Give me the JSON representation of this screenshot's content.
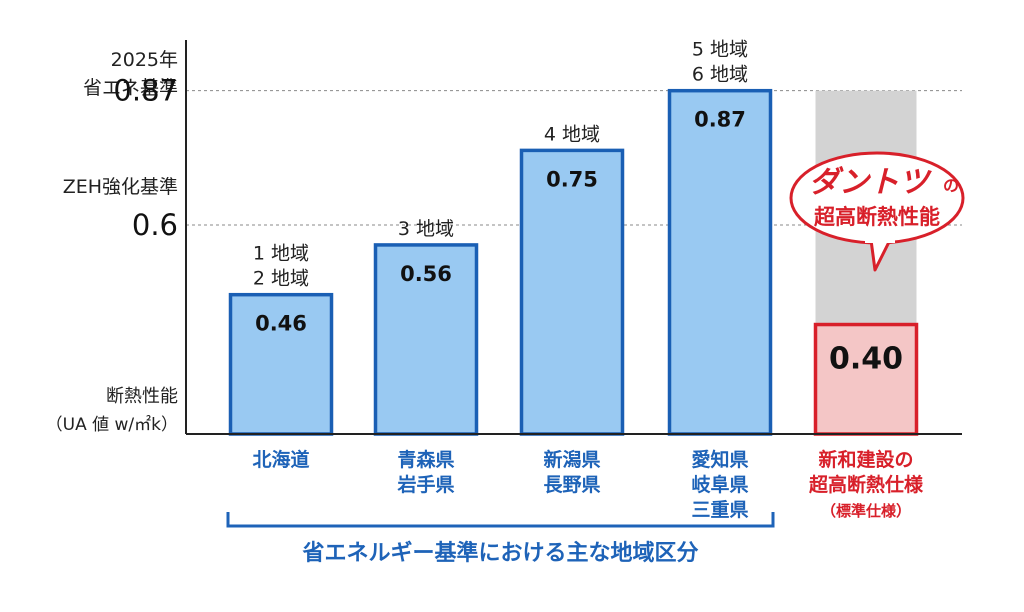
{
  "chart_data": {
    "type": "bar",
    "categories": [
      [
        "北海道"
      ],
      [
        "青森県",
        "岩手県"
      ],
      [
        "新潟県",
        "長野県"
      ],
      [
        "愛知県",
        "岐阜県",
        "三重県"
      ],
      [
        "新和建設の",
        "超高断熱仕様",
        "（標準仕様）"
      ]
    ],
    "regions": [
      [
        "1 地域",
        "2 地域"
      ],
      [
        "3 地域"
      ],
      [
        "4 地域"
      ],
      [
        "5 地域",
        "6 地域"
      ],
      []
    ],
    "values": [
      0.46,
      0.56,
      0.75,
      0.87,
      0.4
    ],
    "value_labels": [
      "0.46",
      "0.56",
      "0.75",
      "0.87",
      "0.40"
    ],
    "ylim": [
      0.18,
      1.0
    ],
    "ylabel": [
      "断熱性能",
      "（UA 値 w/㎡k）"
    ],
    "reference_lines": [
      {
        "caption": [
          "2025年",
          "省エネ基準"
        ],
        "value": 0.87,
        "label": "0.87"
      },
      {
        "caption": [
          "ZEH強化基準"
        ],
        "value": 0.6,
        "label": "0.6"
      }
    ],
    "group_caption": "省エネルギー基準における主な地域区分",
    "callout": {
      "line1": "ダントツ",
      "line1_suffix": "の",
      "line2": "超高断熱性能"
    },
    "colors": {
      "bar_fill": "#99c9f2",
      "bar_stroke": "#1a5fb4",
      "highlight_fill": "#f4c6c6",
      "highlight_stroke": "#d8202a",
      "gap_fill": "#d3d3d3",
      "category_text": "#1e63b8",
      "highlight_text": "#d8202a",
      "axis": "#222222",
      "dash": "#8a8a8a"
    },
    "grid": false
  }
}
